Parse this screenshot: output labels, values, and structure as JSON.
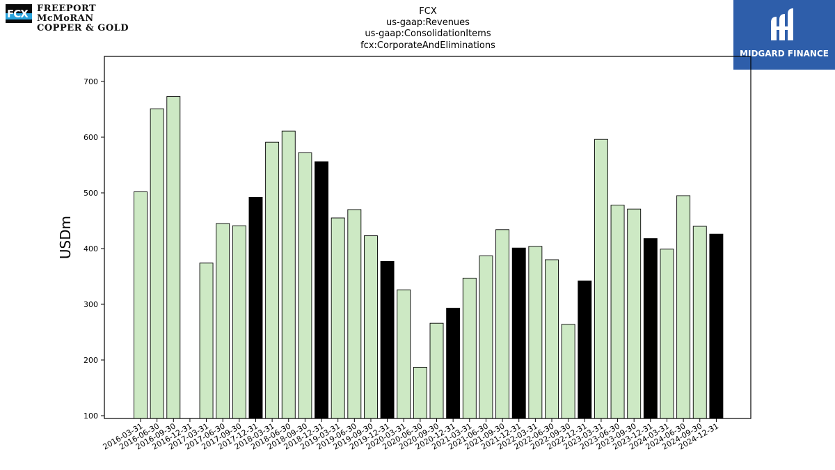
{
  "header": {
    "title_lines": [
      "FCX",
      "us-gaap:Revenues",
      "us-gaap:ConsolidationItems",
      "fcx:CorporateAndEliminations"
    ]
  },
  "logos": {
    "left_mark": "FCX",
    "left_line1": "FREEPORT McMoRAN",
    "left_line2": "COPPER & GOLD",
    "right_text": "MIDGARD FINANCE"
  },
  "colors": {
    "bar_light": "#cde9c4",
    "bar_dark": "#000000",
    "bar_edge": "#000000"
  },
  "chart_data": {
    "type": "bar",
    "title": "FCX\nus-gaap:Revenues\nus-gaap:ConsolidationItems\nfcx:CorporateAndEliminations",
    "xlabel": "",
    "ylabel": "USDm",
    "ylim": [
      95,
      745
    ],
    "yticks": [
      100,
      200,
      300,
      400,
      500,
      600,
      700
    ],
    "grid": false,
    "categories": [
      "2016-03-31",
      "2016-06-30",
      "2016-09-30",
      "2016-12-31",
      "2017-03-31",
      "2017-06-30",
      "2017-09-30",
      "2017-12-31",
      "2018-03-31",
      "2018-06-30",
      "2018-09-30",
      "2018-12-31",
      "2019-03-31",
      "2019-06-30",
      "2019-09-30",
      "2019-12-31",
      "2020-03-31",
      "2020-06-30",
      "2020-09-30",
      "2020-12-31",
      "2021-03-31",
      "2021-06-30",
      "2021-09-30",
      "2021-12-31",
      "2022-03-31",
      "2022-06-30",
      "2022-09-30",
      "2022-12-31",
      "2023-03-31",
      "2023-06-30",
      "2023-09-30",
      "2023-12-31",
      "2024-03-31",
      "2024-06-30",
      "2024-09-30",
      "2024-12-31"
    ],
    "values": [
      502,
      651,
      673,
      null,
      374,
      445,
      441,
      492,
      591,
      611,
      572,
      556,
      455,
      470,
      423,
      377,
      326,
      187,
      266,
      293,
      347,
      387,
      434,
      401,
      404,
      380,
      264,
      342,
      596,
      478,
      471,
      418,
      399,
      495,
      440,
      426
    ],
    "highlight_year_end": true
  }
}
